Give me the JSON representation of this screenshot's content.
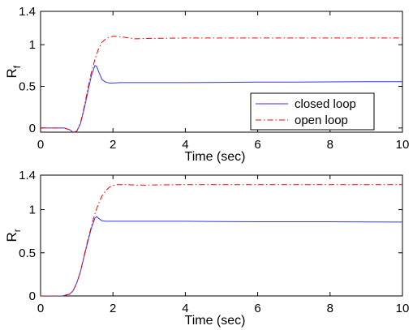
{
  "chart_data": [
    {
      "type": "line",
      "xlabel": "Time (sec)",
      "ylabel": "R",
      "ylabel_sub": "f",
      "xlim": [
        0,
        10
      ],
      "ylim": [
        -0.05,
        1.4
      ],
      "xticks": [
        0,
        2,
        4,
        6,
        8,
        10
      ],
      "ytick_values": [
        0,
        0.5,
        1,
        1.4
      ],
      "ytick_labels": [
        "0",
        "0.5",
        "1",
        "1.4"
      ],
      "grid": false,
      "legend": "lower-right",
      "series": [
        {
          "name": "closed loop",
          "color": "#3333ff",
          "style": "solid",
          "x": [
            0,
            0.5,
            0.65,
            0.8,
            0.9,
            1.0,
            1.1,
            1.2,
            1.3,
            1.4,
            1.5,
            1.55,
            1.6,
            1.7,
            1.8,
            1.9,
            2.0,
            2.2,
            2.5,
            3,
            4,
            5,
            6,
            7,
            8,
            9,
            10
          ],
          "y": [
            0,
            0,
            0,
            -0.02,
            -0.05,
            -0.04,
            0.05,
            0.22,
            0.42,
            0.62,
            0.75,
            0.74,
            0.68,
            0.58,
            0.55,
            0.54,
            0.54,
            0.545,
            0.545,
            0.545,
            0.545,
            0.548,
            0.55,
            0.55,
            0.553,
            0.555,
            0.555
          ]
        },
        {
          "name": "open loop",
          "color": "#ff0000",
          "style": "dashdot",
          "x": [
            0,
            0.5,
            0.65,
            0.8,
            0.9,
            1.0,
            1.1,
            1.2,
            1.3,
            1.4,
            1.5,
            1.6,
            1.7,
            1.8,
            1.9,
            2.0,
            2.1,
            2.3,
            2.6,
            3,
            4,
            5,
            6,
            7,
            8,
            9,
            10
          ],
          "y": [
            0,
            0,
            0,
            -0.02,
            -0.05,
            -0.04,
            0.06,
            0.24,
            0.46,
            0.66,
            0.82,
            0.95,
            1.03,
            1.07,
            1.09,
            1.1,
            1.1,
            1.09,
            1.07,
            1.075,
            1.08,
            1.08,
            1.08,
            1.08,
            1.08,
            1.08,
            1.08
          ]
        }
      ]
    },
    {
      "type": "line",
      "xlabel": "Time (sec)",
      "ylabel": "R",
      "ylabel_sub": "r",
      "xlim": [
        0,
        10
      ],
      "ylim": [
        0,
        1.4
      ],
      "xticks": [
        0,
        2,
        4,
        6,
        8,
        10
      ],
      "ytick_values": [
        0,
        0.5,
        1,
        1.4
      ],
      "ytick_labels": [
        "0",
        "0.5",
        "1",
        "1.4"
      ],
      "grid": false,
      "series": [
        {
          "name": "closed loop",
          "color": "#3333ff",
          "style": "solid",
          "x": [
            0,
            0.5,
            0.6,
            0.8,
            0.9,
            1.0,
            1.1,
            1.2,
            1.3,
            1.4,
            1.5,
            1.55,
            1.6,
            1.7,
            1.8,
            2.0,
            2.5,
            3,
            4,
            5,
            6,
            7,
            8,
            9,
            10
          ],
          "y": [
            0,
            0,
            0,
            0.02,
            0.06,
            0.15,
            0.28,
            0.45,
            0.62,
            0.78,
            0.9,
            0.92,
            0.9,
            0.87,
            0.865,
            0.865,
            0.865,
            0.865,
            0.865,
            0.862,
            0.86,
            0.86,
            0.86,
            0.858,
            0.856
          ]
        },
        {
          "name": "open loop",
          "color": "#ff0000",
          "style": "dashdot",
          "x": [
            0,
            0.5,
            0.6,
            0.8,
            0.9,
            1.0,
            1.1,
            1.2,
            1.3,
            1.4,
            1.5,
            1.6,
            1.7,
            1.8,
            1.9,
            2.0,
            2.1,
            2.3,
            2.6,
            3,
            4,
            5,
            6,
            7,
            8,
            9,
            10
          ],
          "y": [
            0,
            0,
            0,
            0.02,
            0.06,
            0.15,
            0.28,
            0.46,
            0.64,
            0.8,
            0.95,
            1.07,
            1.16,
            1.22,
            1.26,
            1.28,
            1.29,
            1.29,
            1.285,
            1.285,
            1.29,
            1.29,
            1.29,
            1.29,
            1.29,
            1.29,
            1.29
          ]
        }
      ]
    }
  ]
}
